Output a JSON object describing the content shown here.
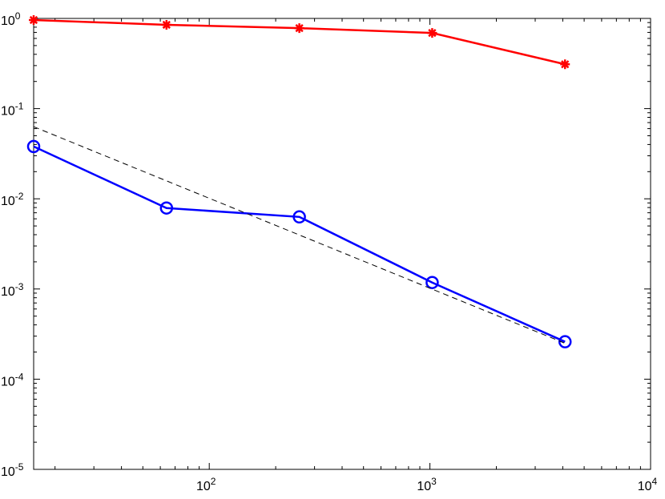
{
  "chart_data": {
    "type": "line",
    "x_scale": "log",
    "y_scale": "log",
    "minor_ticks": true,
    "grid": false,
    "xlim": [
      16,
      10000
    ],
    "ylim": [
      1e-05,
      1
    ],
    "xticks": [
      {
        "value": 100,
        "label": "10^2"
      },
      {
        "value": 1000,
        "label": "10^3"
      },
      {
        "value": 10000,
        "label": "10^4"
      }
    ],
    "yticks": [
      {
        "value": 1e-05,
        "label": "10^-5"
      },
      {
        "value": 0.0001,
        "label": "10^-4"
      },
      {
        "value": 0.001,
        "label": "10^-3"
      },
      {
        "value": 0.01,
        "label": "10^-2"
      },
      {
        "value": 0.1,
        "label": "10^-1"
      },
      {
        "value": 1,
        "label": "10^0"
      }
    ],
    "series": [
      {
        "color": "#ff0000",
        "marker": "asterisk",
        "line_style": "solid",
        "x": [
          16,
          64,
          256,
          1024,
          4096
        ],
        "values": [
          0.96,
          0.85,
          0.78,
          0.69,
          0.31
        ]
      },
      {
        "color": "#0000ff",
        "marker": "circle",
        "line_style": "solid",
        "x": [
          16,
          64,
          256,
          1024,
          4096
        ],
        "values": [
          0.038,
          0.0079,
          0.0063,
          0.00118,
          0.00026
        ]
      },
      {
        "color": "#000000",
        "marker": "none",
        "line_style": "dashed",
        "x": [
          16,
          4096
        ],
        "values": [
          0.063,
          0.00025
        ]
      }
    ]
  }
}
